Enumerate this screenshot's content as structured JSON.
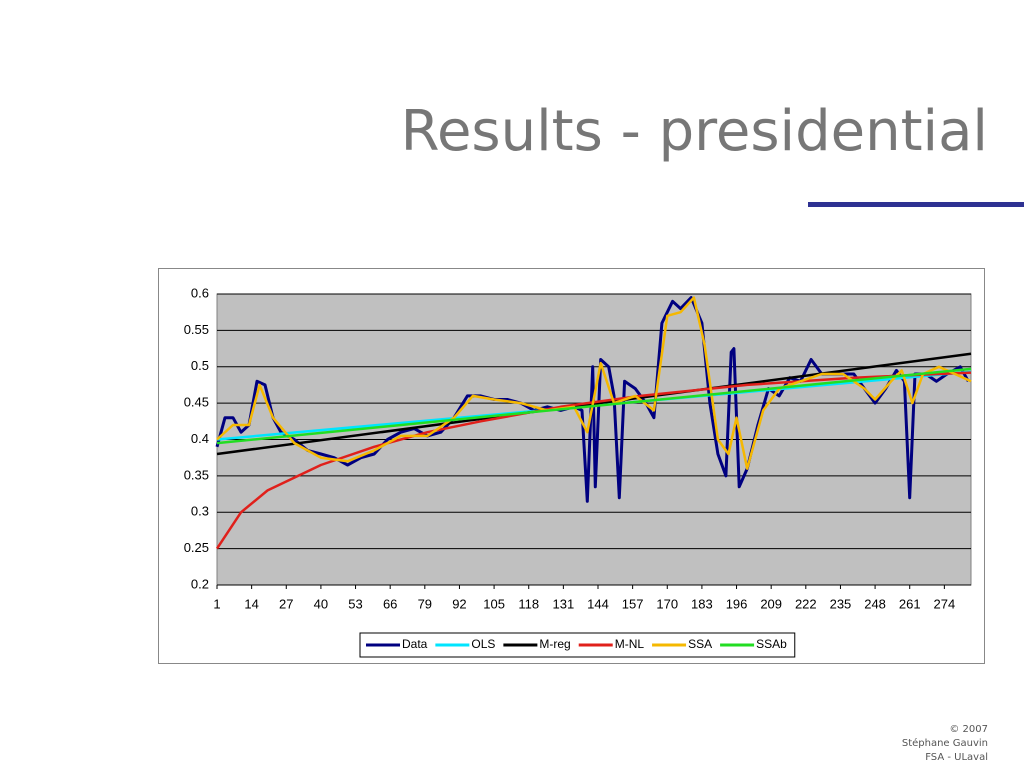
{
  "slide": {
    "title": "Results - presidential",
    "footer": [
      "© 2007",
      "Stéphane Gauvin",
      "FSA - ULaval"
    ]
  },
  "chart_data": {
    "type": "line",
    "xlim": [
      1,
      284
    ],
    "xticks": [
      1,
      14,
      27,
      40,
      53,
      66,
      79,
      92,
      105,
      118,
      131,
      144,
      157,
      170,
      183,
      196,
      209,
      222,
      235,
      248,
      261,
      274
    ],
    "ylim": [
      0.2,
      0.6
    ],
    "yticks": [
      0.2,
      0.25,
      0.3,
      0.35,
      0.4,
      0.45,
      0.5,
      0.55,
      0.6
    ],
    "grid": true,
    "series": [
      {
        "name": "Data",
        "color": "#000080",
        "x": [
          1,
          4,
          7,
          10,
          13,
          16,
          19,
          22,
          25,
          30,
          35,
          40,
          45,
          50,
          55,
          60,
          65,
          70,
          75,
          80,
          85,
          90,
          95,
          100,
          105,
          110,
          115,
          120,
          125,
          130,
          135,
          138,
          140,
          142,
          143,
          145,
          148,
          150,
          152,
          154,
          158,
          162,
          165,
          168,
          172,
          175,
          179,
          183,
          186,
          189,
          192,
          194,
          195,
          197,
          200,
          204,
          208,
          212,
          216,
          220,
          224,
          228,
          232,
          236,
          240,
          244,
          248,
          252,
          256,
          259,
          261,
          263,
          267,
          271,
          275,
          280,
          283
        ],
        "values": [
          0.39,
          0.43,
          0.43,
          0.41,
          0.42,
          0.48,
          0.475,
          0.43,
          0.41,
          0.4,
          0.385,
          0.38,
          0.375,
          0.365,
          0.375,
          0.38,
          0.4,
          0.41,
          0.415,
          0.405,
          0.41,
          0.43,
          0.46,
          0.46,
          0.455,
          0.455,
          0.45,
          0.44,
          0.445,
          0.44,
          0.445,
          0.44,
          0.315,
          0.5,
          0.335,
          0.51,
          0.5,
          0.46,
          0.32,
          0.48,
          0.47,
          0.45,
          0.43,
          0.56,
          0.59,
          0.58,
          0.595,
          0.56,
          0.45,
          0.38,
          0.35,
          0.52,
          0.525,
          0.335,
          0.36,
          0.42,
          0.47,
          0.46,
          0.485,
          0.48,
          0.51,
          0.49,
          0.49,
          0.49,
          0.49,
          0.47,
          0.45,
          0.47,
          0.495,
          0.48,
          0.32,
          0.49,
          0.49,
          0.48,
          0.49,
          0.5,
          0.48
        ]
      },
      {
        "name": "OLS",
        "color": "#00e5ff",
        "x": [
          1,
          284
        ],
        "values": [
          0.4,
          0.493
        ]
      },
      {
        "name": "M-reg",
        "color": "#000000",
        "x": [
          1,
          284
        ],
        "values": [
          0.38,
          0.518
        ]
      },
      {
        "name": "M-NL",
        "color": "#e0201b",
        "x": [
          1,
          10,
          20,
          40,
          60,
          80,
          100,
          130,
          160,
          200,
          240,
          284
        ],
        "values": [
          0.25,
          0.3,
          0.33,
          0.365,
          0.39,
          0.41,
          0.425,
          0.445,
          0.46,
          0.475,
          0.485,
          0.492
        ]
      },
      {
        "name": "SSA",
        "color": "#f5b800",
        "x": [
          1,
          7,
          13,
          17,
          22,
          30,
          40,
          50,
          60,
          70,
          80,
          90,
          97,
          105,
          115,
          125,
          135,
          140,
          145,
          150,
          158,
          165,
          170,
          175,
          180,
          184,
          189,
          193,
          196,
          200,
          206,
          212,
          220,
          228,
          236,
          244,
          248,
          254,
          258,
          262,
          266,
          272,
          278,
          284
        ],
        "values": [
          0.4,
          0.42,
          0.42,
          0.475,
          0.43,
          0.395,
          0.375,
          0.37,
          0.385,
          0.405,
          0.405,
          0.43,
          0.46,
          0.455,
          0.45,
          0.44,
          0.445,
          0.41,
          0.505,
          0.45,
          0.46,
          0.44,
          0.57,
          0.575,
          0.595,
          0.53,
          0.4,
          0.38,
          0.43,
          0.36,
          0.44,
          0.47,
          0.48,
          0.49,
          0.49,
          0.47,
          0.455,
          0.48,
          0.495,
          0.45,
          0.49,
          0.5,
          0.49,
          0.48
        ]
      },
      {
        "name": "SSAb",
        "color": "#22dd22",
        "x": [
          1,
          284
        ],
        "values": [
          0.395,
          0.497
        ]
      }
    ]
  }
}
